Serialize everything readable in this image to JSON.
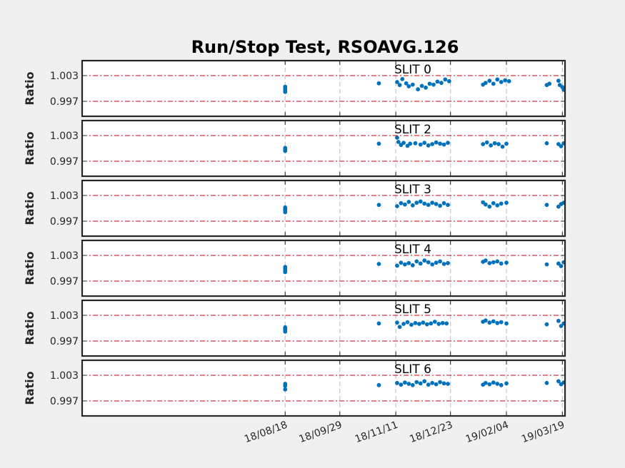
{
  "chart_data": {
    "type": "scatter",
    "title": "Run/Stop Test, RSOAVG.126",
    "ylabel": "Ratio",
    "xtick_labels": [
      "18/08/18",
      "18/09/29",
      "18/11/11",
      "18/12/23",
      "19/02/04",
      "19/03/19"
    ],
    "xlim": [
      "2018-03-15",
      "2019-03-21"
    ],
    "ylim": [
      0.9935,
      1.0065
    ],
    "yticks": [
      0.997,
      1.003
    ],
    "ytick_labels": [
      "0.997",
      "1.003"
    ],
    "reference_lines": [
      0.997,
      1.003
    ],
    "series_color": "#0072bd",
    "reference_color": "#cc0000",
    "grid": "vertical dashed at x ticks",
    "panels": [
      {
        "label": "SLIT 0",
        "x": [
          "2018-08-18",
          "2018-08-18",
          "2018-08-18",
          "2018-08-18",
          "2018-10-29",
          "2018-11-12",
          "2018-11-14",
          "2018-11-16",
          "2018-11-19",
          "2018-11-21",
          "2018-11-24",
          "2018-11-28",
          "2018-12-01",
          "2018-12-04",
          "2018-12-07",
          "2018-12-10",
          "2018-12-13",
          "2018-12-16",
          "2018-12-19",
          "2018-12-22",
          "2019-01-17",
          "2019-01-19",
          "2019-01-22",
          "2019-01-25",
          "2019-01-28",
          "2019-01-31",
          "2019-02-03",
          "2019-02-06",
          "2019-03-07",
          "2019-03-09",
          "2019-03-16",
          "2019-03-17",
          "2019-03-19",
          "2019-03-20"
        ],
        "y": [
          0.9992,
          0.9996,
          1.0,
          1.0004,
          1.0012,
          1.0015,
          1.0008,
          1.0022,
          1.0012,
          1.0005,
          1.0009,
          0.9998,
          1.0006,
          1.0002,
          1.0011,
          1.0009,
          1.0016,
          1.0013,
          1.0021,
          1.0017,
          1.0009,
          1.0013,
          1.0018,
          1.0011,
          1.0021,
          1.0015,
          1.0019,
          1.0017,
          1.0008,
          1.0011,
          1.0018,
          1.0008,
          1.0003,
          0.9997
        ]
      },
      {
        "label": "SLIT 2",
        "x": [
          "2018-08-18",
          "2018-08-18",
          "2018-08-18",
          "2018-10-29",
          "2018-11-12",
          "2018-11-13",
          "2018-11-15",
          "2018-11-17",
          "2018-11-20",
          "2018-11-22",
          "2018-11-26",
          "2018-11-30",
          "2018-12-03",
          "2018-12-06",
          "2018-12-09",
          "2018-12-12",
          "2018-12-15",
          "2018-12-18",
          "2018-12-21",
          "2019-01-17",
          "2019-01-20",
          "2019-01-23",
          "2019-01-26",
          "2019-01-29",
          "2019-02-01",
          "2019-02-04",
          "2019-03-07",
          "2019-03-16",
          "2019-03-18",
          "2019-03-20"
        ],
        "y": [
          0.9994,
          0.9998,
          1.0001,
          1.0011,
          1.0025,
          1.0015,
          1.0008,
          1.0013,
          1.0006,
          1.0011,
          1.0012,
          1.0009,
          1.0013,
          1.0007,
          1.001,
          1.0014,
          1.0011,
          1.0009,
          1.0013,
          1.001,
          1.0014,
          1.0007,
          1.0012,
          1.001,
          1.0004,
          1.0011,
          1.0012,
          1.001,
          1.0005,
          1.0012
        ]
      },
      {
        "label": "SLIT 3",
        "x": [
          "2018-08-18",
          "2018-08-18",
          "2018-08-18",
          "2018-08-18",
          "2018-10-29",
          "2018-11-12",
          "2018-11-15",
          "2018-11-18",
          "2018-11-21",
          "2018-11-24",
          "2018-11-27",
          "2018-11-30",
          "2018-12-03",
          "2018-12-06",
          "2018-12-09",
          "2018-12-12",
          "2018-12-15",
          "2018-12-18",
          "2018-12-21",
          "2019-01-17",
          "2019-01-19",
          "2019-01-22",
          "2019-01-25",
          "2019-01-28",
          "2019-01-31",
          "2019-02-04",
          "2019-03-07",
          "2019-03-16",
          "2019-03-18",
          "2019-03-20"
        ],
        "y": [
          0.9991,
          0.9995,
          0.9998,
          1.0002,
          1.0008,
          1.0005,
          1.0012,
          1.0009,
          1.0015,
          1.0007,
          1.0013,
          1.0016,
          1.0011,
          1.0008,
          1.0013,
          1.001,
          1.0006,
          1.0012,
          1.0008,
          1.0014,
          1.0009,
          1.0004,
          1.0012,
          1.0007,
          1.0011,
          1.0013,
          1.0008,
          1.0004,
          1.001,
          1.0013
        ]
      },
      {
        "label": "SLIT 4",
        "x": [
          "2018-08-18",
          "2018-08-18",
          "2018-08-18",
          "2018-08-18",
          "2018-10-29",
          "2018-11-12",
          "2018-11-15",
          "2018-11-18",
          "2018-11-21",
          "2018-11-24",
          "2018-11-27",
          "2018-11-30",
          "2018-12-03",
          "2018-12-06",
          "2018-12-09",
          "2018-12-12",
          "2018-12-15",
          "2018-12-18",
          "2018-12-21",
          "2019-01-17",
          "2019-01-19",
          "2019-01-22",
          "2019-01-25",
          "2019-01-28",
          "2019-01-31",
          "2019-02-04",
          "2019-03-07",
          "2019-03-16",
          "2019-03-18",
          "2019-03-20"
        ],
        "y": [
          0.9991,
          0.9995,
          0.9999,
          1.0003,
          1.001,
          1.0006,
          1.0013,
          1.0009,
          1.0012,
          1.0007,
          1.0016,
          1.0011,
          1.0018,
          1.0014,
          1.0009,
          1.0013,
          1.0016,
          1.001,
          1.0012,
          1.0015,
          1.0018,
          1.0012,
          1.0014,
          1.0016,
          1.0011,
          1.0013,
          1.0009,
          1.0011,
          1.0005,
          1.0014
        ]
      },
      {
        "label": "SLIT 5",
        "x": [
          "2018-08-18",
          "2018-08-18",
          "2018-08-18",
          "2018-08-18",
          "2018-10-29",
          "2018-11-12",
          "2018-11-14",
          "2018-11-17",
          "2018-11-20",
          "2018-11-23",
          "2018-11-26",
          "2018-11-29",
          "2018-12-02",
          "2018-12-05",
          "2018-12-08",
          "2018-12-11",
          "2018-12-14",
          "2018-12-17",
          "2018-12-20",
          "2019-01-17",
          "2019-01-19",
          "2019-01-22",
          "2019-01-25",
          "2019-01-28",
          "2019-01-31",
          "2019-02-04",
          "2019-03-07",
          "2019-03-16",
          "2019-03-18",
          "2019-03-20"
        ],
        "y": [
          0.9992,
          0.9996,
          0.9999,
          1.0002,
          1.0011,
          1.0013,
          1.0003,
          1.001,
          1.0014,
          1.0008,
          1.0012,
          1.001,
          1.0013,
          1.0009,
          1.0011,
          1.0015,
          1.001,
          1.0012,
          1.0011,
          1.0015,
          1.0018,
          1.0013,
          1.0016,
          1.0012,
          1.0014,
          1.0011,
          1.0009,
          1.0017,
          1.0005,
          1.0011
        ]
      },
      {
        "label": "SLIT 6",
        "x": [
          "2018-08-18",
          "2018-08-18",
          "2018-08-18",
          "2018-10-29",
          "2018-11-12",
          "2018-11-15",
          "2018-11-18",
          "2018-11-21",
          "2018-11-24",
          "2018-11-27",
          "2018-11-30",
          "2018-12-03",
          "2018-12-06",
          "2018-12-09",
          "2018-12-12",
          "2018-12-15",
          "2018-12-18",
          "2018-12-21",
          "2019-01-17",
          "2019-01-19",
          "2019-01-22",
          "2019-01-25",
          "2019-01-28",
          "2019-01-31",
          "2019-02-04",
          "2019-03-07",
          "2019-03-16",
          "2019-03-18",
          "2019-03-20"
        ],
        "y": [
          0.9997,
          1.0005,
          1.001,
          1.0007,
          1.0012,
          1.0008,
          1.0013,
          1.001,
          1.0007,
          1.0014,
          1.0011,
          1.0016,
          1.0008,
          1.0012,
          1.0009,
          1.0014,
          1.0011,
          1.001,
          1.0008,
          1.0012,
          1.0009,
          1.0013,
          1.001,
          1.0007,
          1.0011,
          1.0012,
          1.0016,
          1.0009,
          1.0013
        ]
      }
    ]
  }
}
